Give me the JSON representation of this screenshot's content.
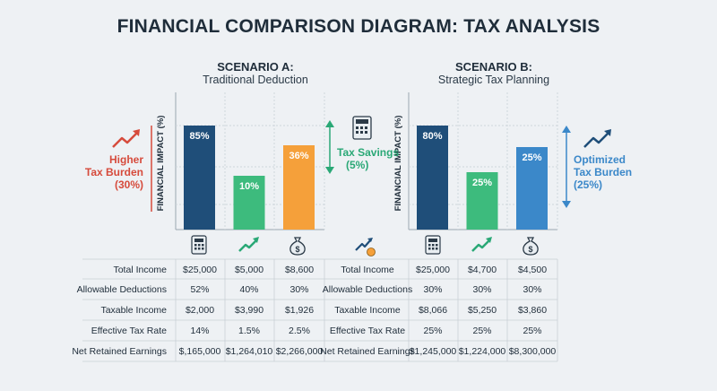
{
  "title": "FINANCIAL COMPARISON DIAGRAM: TAX ANALYSIS",
  "scenario_a": {
    "title": "SCENARIO A:",
    "subtitle": "Traditional Deduction"
  },
  "scenario_b": {
    "title": "SCENARIO B:",
    "subtitle": "Strategic Tax Planning"
  },
  "y_axis_label": "FINANCIAL IMPACT (%)",
  "annotations": {
    "higher_burden": [
      "Higher",
      "Tax Burden",
      "(30%)"
    ],
    "tax_savings": [
      "Tax Savings",
      "(5%)"
    ],
    "optimized_burden": [
      "Optimized",
      "Tax Burden",
      "(25%)"
    ]
  },
  "colors": {
    "navy": "#1f4e79",
    "green": "#3dbb7d",
    "orange": "#f5a03a",
    "blue": "#3b88c9",
    "red": "#d64b3c",
    "teal": "#2aa876"
  },
  "icons": [
    "calculator-icon",
    "trend-up-icon",
    "money-bag-icon",
    "coin-trend-icon"
  ],
  "chart_data": [
    {
      "type": "bar",
      "categories": [
        "",
        "",
        ""
      ],
      "values": [
        85,
        10,
        36
      ],
      "labels": [
        "85%",
        "10%",
        "36%"
      ],
      "ylim": [
        0,
        100
      ]
    },
    {
      "type": "bar",
      "categories": [
        "",
        "",
        ""
      ],
      "values": [
        80,
        25,
        25
      ],
      "labels": [
        "80%",
        "25%",
        "25%"
      ],
      "ylim": [
        0,
        100
      ]
    }
  ],
  "table": {
    "rows": [
      {
        "label": "Total Income",
        "a": [
          "$25,000",
          "$5,000",
          "$8,600"
        ],
        "b": [
          "$25,000",
          "$4,700",
          "$4,500"
        ]
      },
      {
        "label": "Allowable Deductions",
        "a": [
          "52%",
          "40%",
          "30%"
        ],
        "b": [
          "30%",
          "30%",
          "30%"
        ]
      },
      {
        "label": "Taxable Income",
        "a": [
          "$2,000",
          "$3,990",
          "$1,926"
        ],
        "b": [
          "$8,066",
          "$5,250",
          "$3,860"
        ]
      },
      {
        "label": "Effective Tax Rate",
        "a": [
          "14%",
          "1.5%",
          "2.5%"
        ],
        "b": [
          "25%",
          "25%",
          "25%"
        ]
      },
      {
        "label": "Net Retained Earnings",
        "a": [
          "$,165,000",
          "$1,264,010",
          "$2,266,000"
        ],
        "b": [
          "$1,245,000",
          "$1,224,000",
          "$8,300,000"
        ]
      }
    ]
  }
}
